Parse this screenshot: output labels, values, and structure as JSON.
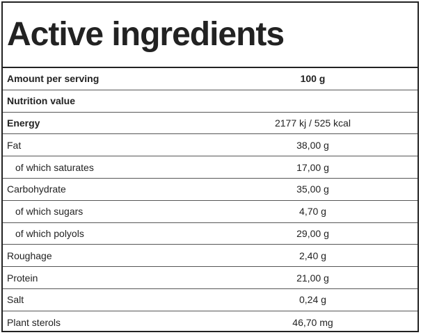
{
  "title": "Active ingredients",
  "header": {
    "label": "Amount per serving",
    "value": "100 g"
  },
  "section_label": "Nutrition value",
  "rows": [
    {
      "label": "Energy",
      "value": "2177 kj / 525 kcal"
    },
    {
      "label": "Fat",
      "value": "38,00 g"
    },
    {
      "label": "of which saturates",
      "value": "17,00 g"
    },
    {
      "label": "Carbohydrate",
      "value": "35,00 g"
    },
    {
      "label": "of which sugars",
      "value": "4,70 g"
    },
    {
      "label": "of which polyols",
      "value": "29,00 g"
    },
    {
      "label": "Roughage",
      "value": "2,40 g"
    },
    {
      "label": "Protein",
      "value": "21,00 g"
    },
    {
      "label": "Salt",
      "value": "0,24 g"
    },
    {
      "label": "Plant sterols",
      "value": "46,70 mg"
    }
  ]
}
